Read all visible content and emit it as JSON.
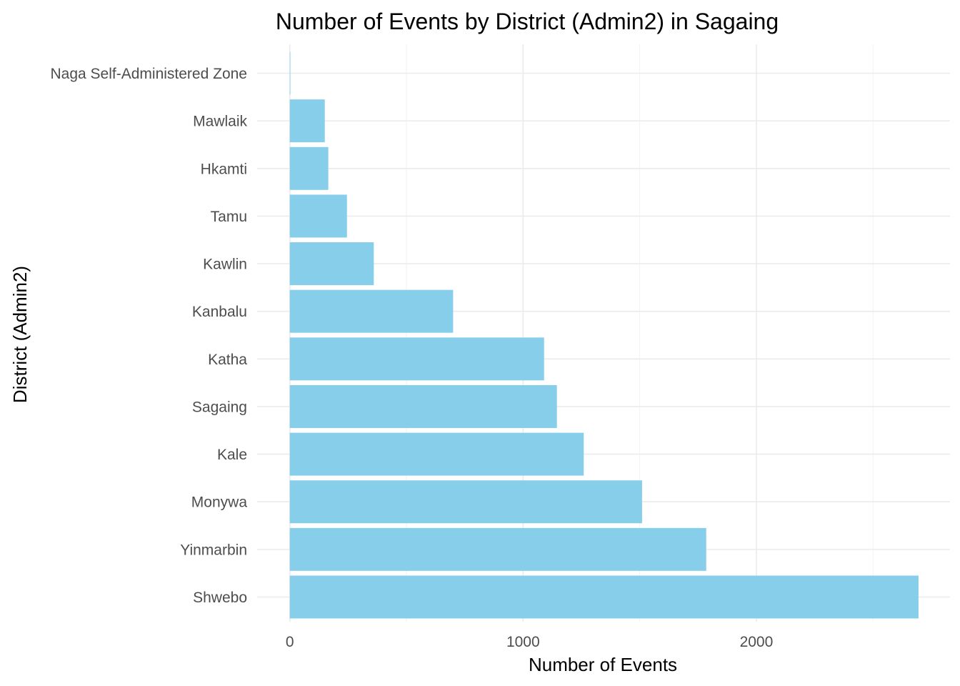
{
  "chart_data": {
    "type": "bar",
    "orientation": "horizontal",
    "title": "Number of Events by District (Admin2) in Sagaing",
    "xlabel": "Number of Events",
    "ylabel": "District (Admin2)",
    "categories": [
      "Naga Self-Administered Zone",
      "Mawlaik",
      "Hkamti",
      "Tamu",
      "Kawlin",
      "Kanbalu",
      "Katha",
      "Sagaing",
      "Kale",
      "Monywa",
      "Yinmarbin",
      "Shwebo"
    ],
    "values": [
      2,
      150,
      165,
      245,
      360,
      700,
      1090,
      1145,
      1260,
      1510,
      1785,
      2695
    ],
    "xlim": [
      -140,
      2830
    ],
    "xticks": [
      0,
      1000,
      2000
    ],
    "xtick_labels": [
      "0",
      "1000",
      "2000"
    ],
    "bar_color": "#87ceeb",
    "grid": true,
    "legend": "none"
  }
}
